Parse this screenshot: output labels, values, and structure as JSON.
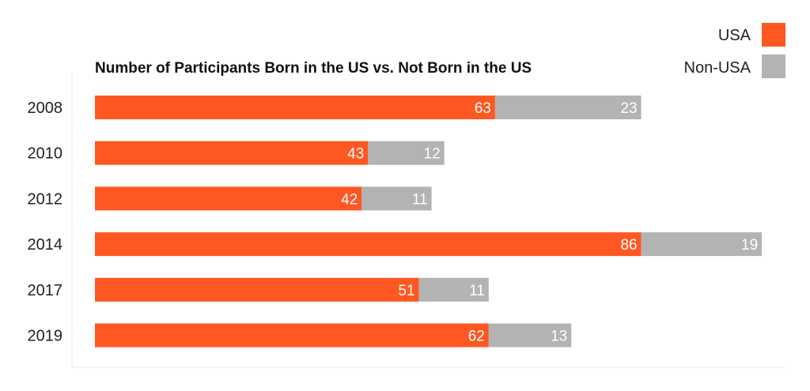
{
  "chart_data": {
    "type": "bar",
    "orientation": "horizontal",
    "stacked": true,
    "title": "Number of Participants Born in the US vs. Not Born in the US",
    "categories": [
      "2008",
      "2010",
      "2012",
      "2014",
      "2017",
      "2019"
    ],
    "series": [
      {
        "name": "USA",
        "color": "#ff5722",
        "values": [
          63,
          43,
          42,
          86,
          51,
          62
        ]
      },
      {
        "name": "Non-USA",
        "color": "#b3b3b3",
        "values": [
          23,
          12,
          11,
          19,
          11,
          13
        ]
      }
    ],
    "xlim": [
      0,
      105
    ],
    "grid": false,
    "legend_position": "top-right",
    "data_labels": true
  }
}
